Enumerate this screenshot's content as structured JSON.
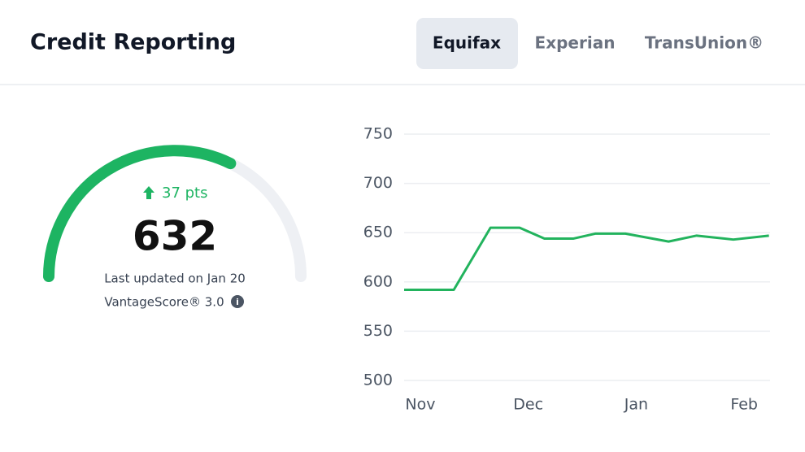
{
  "header": {
    "title": "Credit Reporting",
    "tabs": [
      "Equifax",
      "Experian",
      "TransUnion®"
    ]
  },
  "score": {
    "change": "37 pts",
    "value": 632,
    "updated": "Last updated on Jan 20",
    "model": "VantageScore® 3.0"
  },
  "chart_data": {
    "type": "line",
    "x": [
      -0.15,
      0.31,
      0.65,
      0.92,
      1.15,
      1.42,
      1.62,
      1.9,
      2.3,
      2.56,
      2.9,
      3.23
    ],
    "series": [
      {
        "name": "Equifax",
        "color": "#22b35d",
        "values": [
          592,
          592,
          655,
          655,
          644,
          644,
          649,
          649,
          641,
          647,
          643,
          647
        ]
      }
    ],
    "xlim": [
      -0.15,
      3.24
    ],
    "xticks": [
      {
        "value": 0,
        "label": "Nov"
      },
      {
        "value": 1,
        "label": "Dec"
      },
      {
        "value": 2,
        "label": "Jan"
      },
      {
        "value": 3,
        "label": "Feb"
      }
    ],
    "ylim": [
      500,
      750
    ],
    "yticks": [
      500,
      550,
      600,
      650,
      700,
      750
    ],
    "grid": true
  }
}
